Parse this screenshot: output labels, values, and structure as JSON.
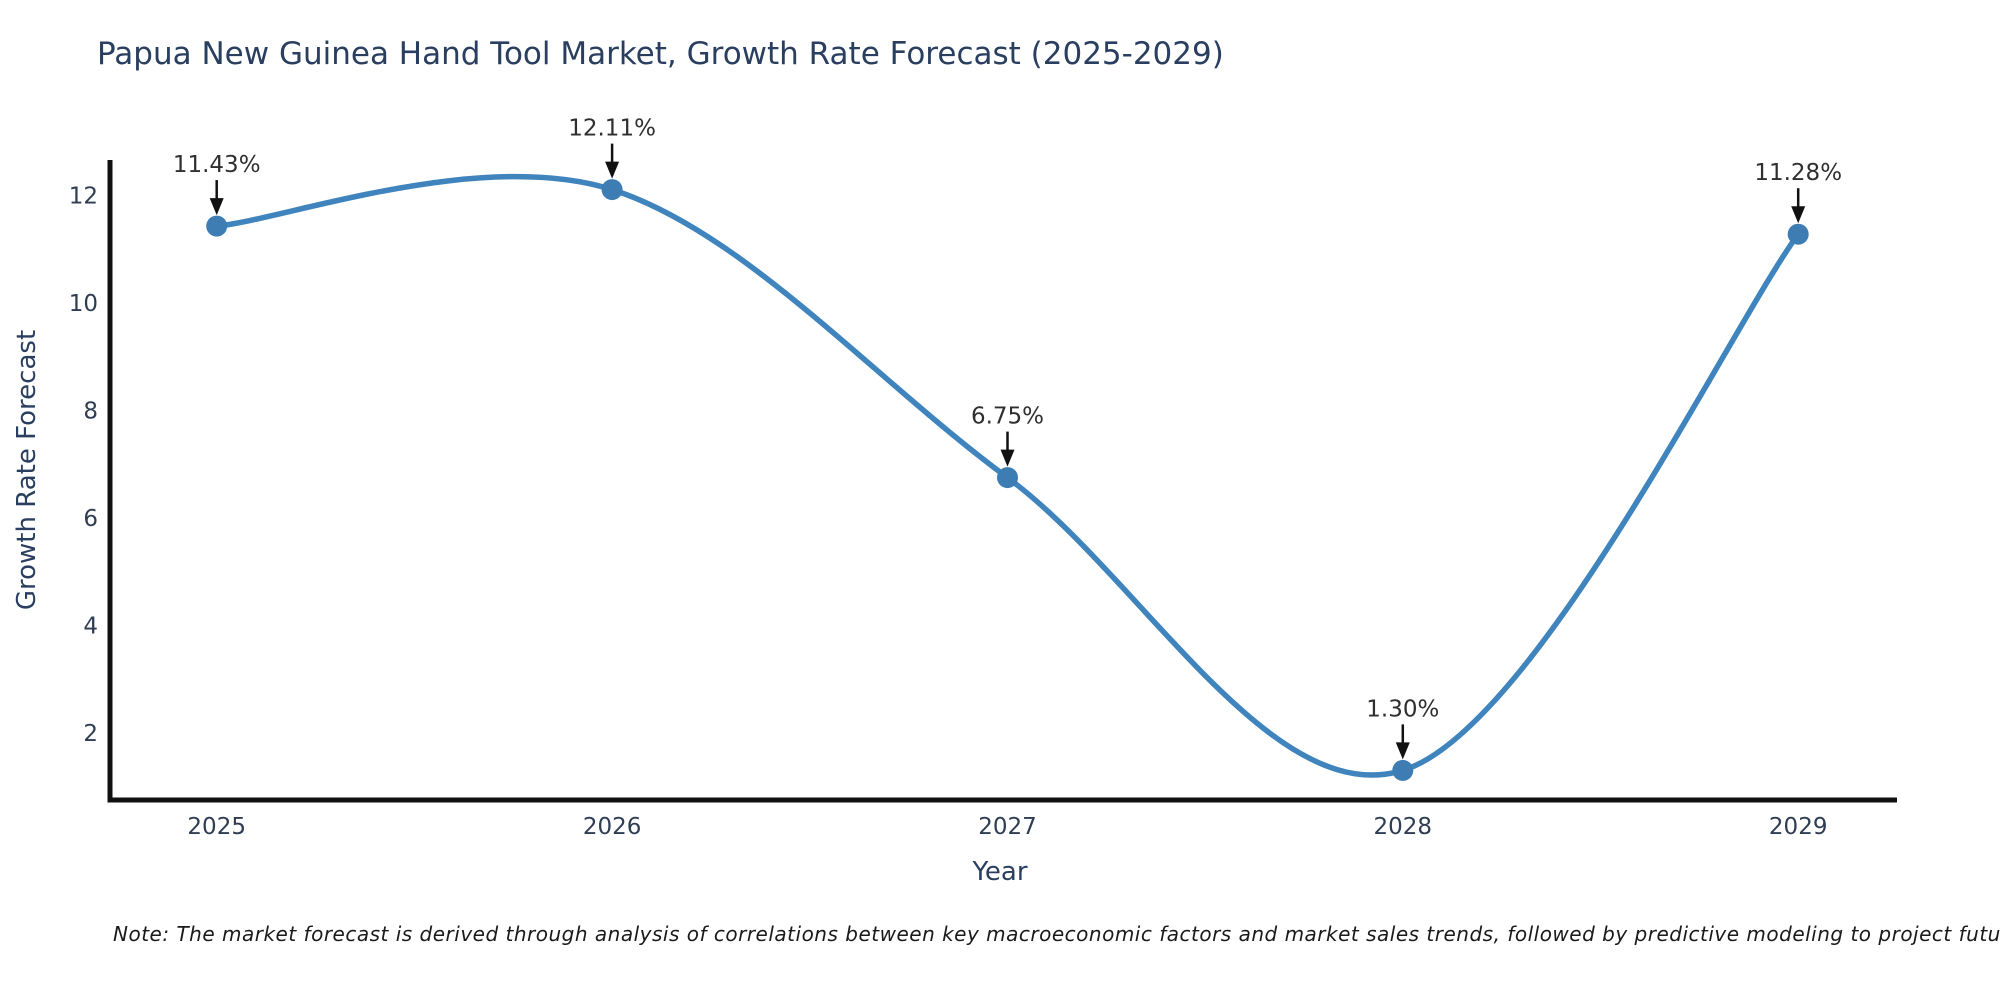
{
  "page": {
    "background": "#ffffff"
  },
  "chart_data": {
    "type": "line",
    "title": "Papua New Guinea Hand Tool Market, Growth Rate Forecast (2025-2029)",
    "xlabel": "Year",
    "ylabel": "Growth Rate Forecast",
    "x": [
      2025,
      2026,
      2027,
      2028,
      2029
    ],
    "series": [
      {
        "name": "Growth Rate Forecast",
        "values": [
          11.43,
          12.11,
          6.75,
          1.3,
          11.28
        ]
      }
    ],
    "point_labels": [
      "11.43%",
      "12.11%",
      "6.75%",
      "1.30%",
      "11.28%"
    ],
    "xticks": [
      "2025",
      "2026",
      "2027",
      "2028",
      "2029"
    ],
    "yticks": [
      2,
      4,
      6,
      8,
      10,
      12
    ],
    "xlim": [
      2024.73,
      2029.25
    ],
    "ylim": [
      0.75,
      12.66
    ],
    "line_shape": "spline",
    "grid": false,
    "legend": "none",
    "marker_style": "circle",
    "colors": {
      "line": "#4084bd",
      "marker": "#3d7db4",
      "annotation_text": "#2f2f2f",
      "annotation_arrow": "#111111",
      "axis": "#111111",
      "tick": "#2f3d53",
      "title": "#2a3f5f",
      "note": "#1a1a1a"
    }
  },
  "note": "Note: The market forecast is derived through analysis of correlations between key macroeconomic factors and market sales trends, followed by predictive modeling to project future sales"
}
